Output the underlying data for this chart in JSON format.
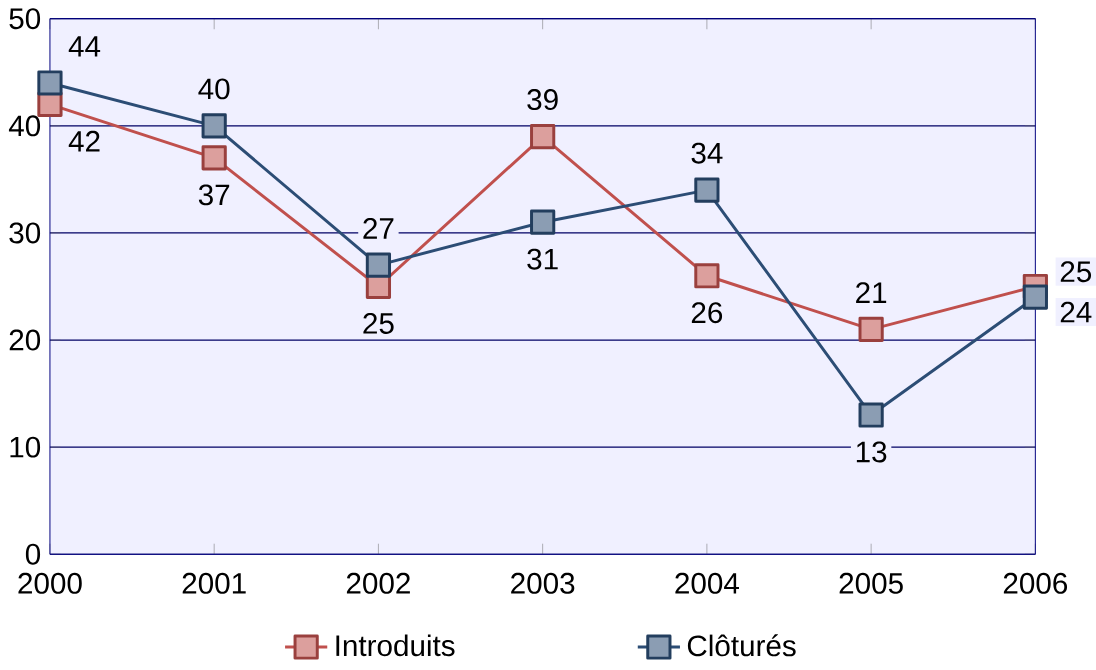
{
  "chart_data": {
    "type": "line",
    "x": [
      2000,
      2001,
      2002,
      2003,
      2004,
      2005,
      2006
    ],
    "series": [
      {
        "name": "Introduits",
        "color": "#c0504d",
        "values": [
          42,
          37,
          25,
          39,
          26,
          21,
          25
        ]
      },
      {
        "name": "Clôturés",
        "color": "#2c4d75",
        "values": [
          44,
          40,
          27,
          31,
          34,
          13,
          24
        ]
      }
    ],
    "xlim": [
      2000,
      2006
    ],
    "xticks": [
      2000,
      2001,
      2002,
      2003,
      2004,
      2005,
      2006
    ],
    "ylim": [
      0,
      50
    ],
    "yticks": [
      0,
      10,
      20,
      30,
      40,
      50
    ],
    "grid": "y",
    "legend": "bottom",
    "marker": "square",
    "line_style": "solid",
    "data_labels": true
  }
}
